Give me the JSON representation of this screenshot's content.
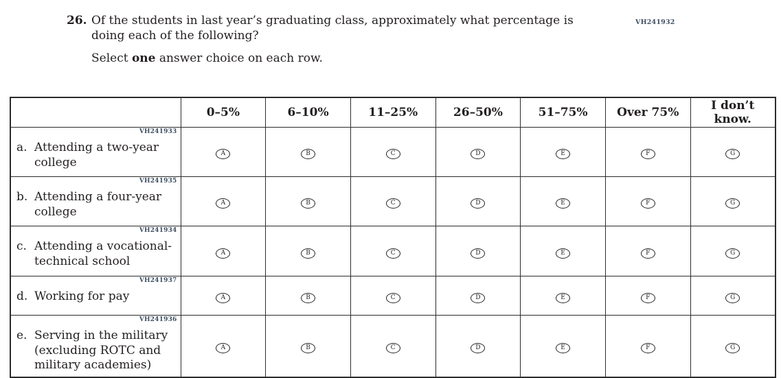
{
  "page": {
    "top_code": "VH241932"
  },
  "question": {
    "number": "26.",
    "text": "Of the students in last year’s graduating class, approximately what percentage is doing each of the following?",
    "instruction": {
      "prefix": "Select ",
      "bold": "one",
      "suffix": " answer choice on each row."
    }
  },
  "table": {
    "columns": [
      "0–5%",
      "6–10%",
      "11–25%",
      "26–50%",
      "51–75%",
      "Over 75%",
      "I don’t know."
    ],
    "options": [
      "A",
      "B",
      "C",
      "D",
      "E",
      "F",
      "G"
    ],
    "rows": [
      {
        "code": "VH241933",
        "letter": "a.",
        "label": "Attending a two-year college"
      },
      {
        "code": "VH241935",
        "letter": "b.",
        "label": "Attending a four-year college"
      },
      {
        "code": "VH241934",
        "letter": "c.",
        "label": "Attending a vocational-technical school"
      },
      {
        "code": "VH241937",
        "letter": "d.",
        "label": "Working for pay"
      },
      {
        "code": "VH241936",
        "letter": "e.",
        "label": "Serving in the military (excluding ROTC and military academies)"
      }
    ]
  },
  "colors": {
    "text": "#231f20",
    "item_code": "#3e4f63",
    "table_border": "#2b2b2b",
    "background": "#ffffff"
  }
}
